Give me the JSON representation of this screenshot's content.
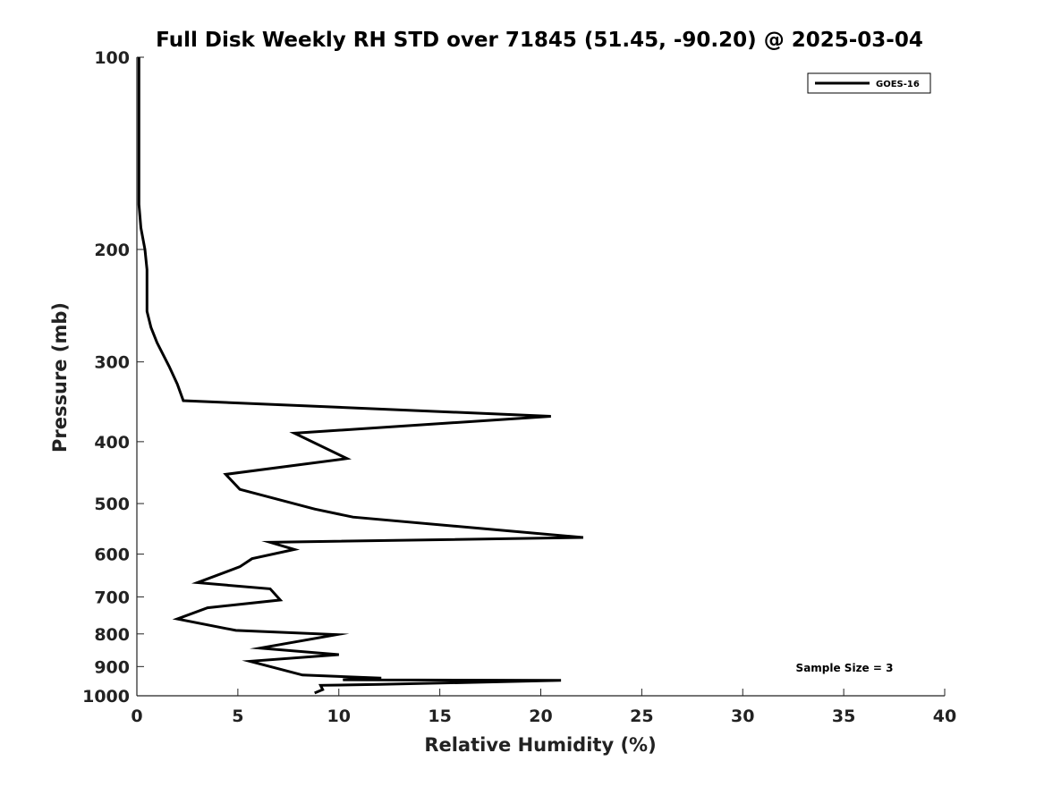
{
  "chart_data": {
    "type": "line",
    "title": "Full Disk Weekly RH STD over 71845 (51.45, -90.20) @ 2025-03-04",
    "xlabel": "Relative Humidity (%)",
    "ylabel": "Pressure (mb)",
    "xlim": [
      0,
      40
    ],
    "ylim": [
      100,
      1000
    ],
    "y_scale": "log",
    "y_inverted": true,
    "xticks": [
      "0",
      "5",
      "10",
      "15",
      "20",
      "25",
      "30",
      "35",
      "40"
    ],
    "yticks": [
      "100",
      "200",
      "300",
      "400",
      "500",
      "600",
      "700",
      "800",
      "900",
      "1000"
    ],
    "grid": false,
    "legend_position": "top-right",
    "annotation": "Sample Size = 3",
    "series": [
      {
        "name": "GOES-16",
        "color": "#000000",
        "x": [
          0.1,
          0.1,
          0.1,
          0.2,
          0.4,
          0.5,
          0.5,
          0.7,
          1.0,
          1.6,
          2.0,
          2.3,
          20.5,
          7.8,
          10.4,
          4.4,
          5.1,
          8.8,
          10.7,
          22.1,
          6.6,
          7.8,
          5.7,
          5.1,
          3.0,
          6.6,
          7.1,
          3.5,
          2.0,
          4.9,
          9.9,
          6.1,
          10.0,
          5.6,
          8.2,
          12.1,
          10.2,
          21.0,
          12.0,
          9.1,
          9.2,
          8.8
        ],
        "y": [
          100,
          130,
          170,
          185,
          200,
          215,
          250,
          265,
          280,
          305,
          325,
          345,
          365,
          388,
          425,
          450,
          475,
          510,
          525,
          565,
          575,
          590,
          610,
          628,
          665,
          680,
          708,
          728,
          758,
          790,
          802,
          842,
          862,
          883,
          928,
          938,
          944,
          946,
          960,
          963,
          978,
          990
        ]
      }
    ]
  }
}
